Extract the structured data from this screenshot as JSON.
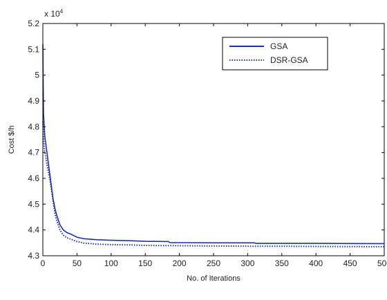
{
  "chart_data": {
    "type": "line",
    "title": "",
    "xlabel": "No. of Iterations",
    "ylabel": "Cost $/h",
    "y_multiplier_label": "x 10",
    "y_multiplier_exponent": "4",
    "xlim": [
      0,
      500
    ],
    "ylim": [
      4.3,
      5.2
    ],
    "x_ticks": [
      0,
      50,
      100,
      150,
      200,
      250,
      300,
      350,
      400,
      450,
      500
    ],
    "x_tick_labels": [
      "0",
      "50",
      "100",
      "150",
      "200",
      "250",
      "300",
      "350",
      "400",
      "450",
      "500"
    ],
    "y_ticks": [
      4.3,
      4.4,
      4.5,
      4.6,
      4.7,
      4.8,
      4.9,
      5.0,
      5.1,
      5.2
    ],
    "y_tick_labels": [
      "4.3",
      "4.4",
      "4.5",
      "4.6",
      "4.7",
      "4.8",
      "4.9",
      "5",
      "5.1",
      "5.2"
    ],
    "grid": false,
    "legend_position": "top-right",
    "series": [
      {
        "name": "GSA",
        "color": "#1f2fa8",
        "style": "solid",
        "points": [
          [
            0,
            5.12
          ],
          [
            1,
            4.85
          ],
          [
            2,
            4.8
          ],
          [
            3,
            4.76
          ],
          [
            5,
            4.72
          ],
          [
            7,
            4.68
          ],
          [
            10,
            4.62
          ],
          [
            13,
            4.56
          ],
          [
            15,
            4.52
          ],
          [
            18,
            4.48
          ],
          [
            20,
            4.46
          ],
          [
            25,
            4.42
          ],
          [
            30,
            4.4
          ],
          [
            35,
            4.39
          ],
          [
            40,
            4.385
          ],
          [
            50,
            4.372
          ],
          [
            60,
            4.366
          ],
          [
            80,
            4.362
          ],
          [
            100,
            4.36
          ],
          [
            130,
            4.358
          ],
          [
            150,
            4.356
          ],
          [
            184,
            4.355
          ],
          [
            186,
            4.351
          ],
          [
            250,
            4.35
          ],
          [
            310,
            4.35
          ],
          [
            312,
            4.348
          ],
          [
            400,
            4.348
          ],
          [
            500,
            4.347
          ]
        ]
      },
      {
        "name": "DSR-GSA",
        "color": "#1f2fa8",
        "style": "dotted",
        "points": [
          [
            0,
            4.82
          ],
          [
            1,
            4.76
          ],
          [
            2,
            4.72
          ],
          [
            3,
            4.7
          ],
          [
            5,
            4.67
          ],
          [
            7,
            4.64
          ],
          [
            10,
            4.6
          ],
          [
            13,
            4.55
          ],
          [
            15,
            4.51
          ],
          [
            18,
            4.46
          ],
          [
            20,
            4.44
          ],
          [
            25,
            4.4
          ],
          [
            30,
            4.38
          ],
          [
            35,
            4.37
          ],
          [
            40,
            4.365
          ],
          [
            50,
            4.355
          ],
          [
            60,
            4.349
          ],
          [
            80,
            4.345
          ],
          [
            100,
            4.343
          ],
          [
            130,
            4.342
          ],
          [
            150,
            4.34
          ],
          [
            200,
            4.339
          ],
          [
            250,
            4.338
          ],
          [
            300,
            4.337
          ],
          [
            350,
            4.337
          ],
          [
            400,
            4.336
          ],
          [
            500,
            4.335
          ]
        ]
      }
    ]
  }
}
